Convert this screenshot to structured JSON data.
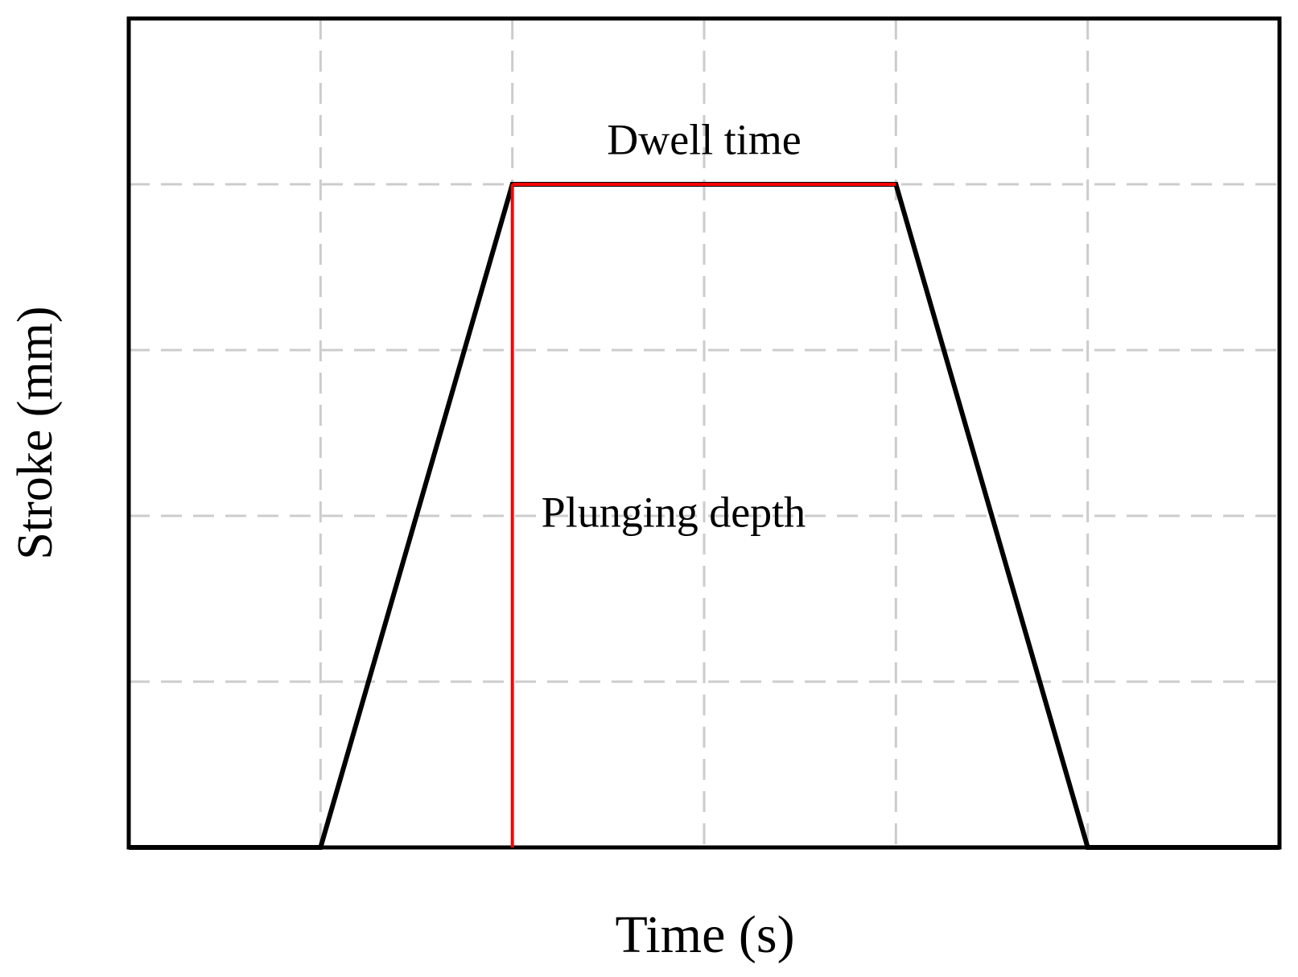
{
  "chart_data": {
    "type": "line",
    "xlabel": "Time (s)",
    "ylabel": "Stroke (mm)",
    "x": [
      0,
      1,
      2,
      4,
      5,
      6
    ],
    "values": [
      0,
      0,
      4,
      4,
      0,
      0
    ],
    "color": "#000000",
    "xlim": [
      0,
      6
    ],
    "ylim": [
      0,
      5
    ],
    "xticks": [
      1,
      2,
      3,
      4,
      5
    ],
    "yticks": [
      1,
      2,
      3,
      4
    ],
    "grid": true,
    "annotations": [
      "Dwell time",
      "Plunging depth"
    ],
    "annotation_color": "#ff0000"
  }
}
